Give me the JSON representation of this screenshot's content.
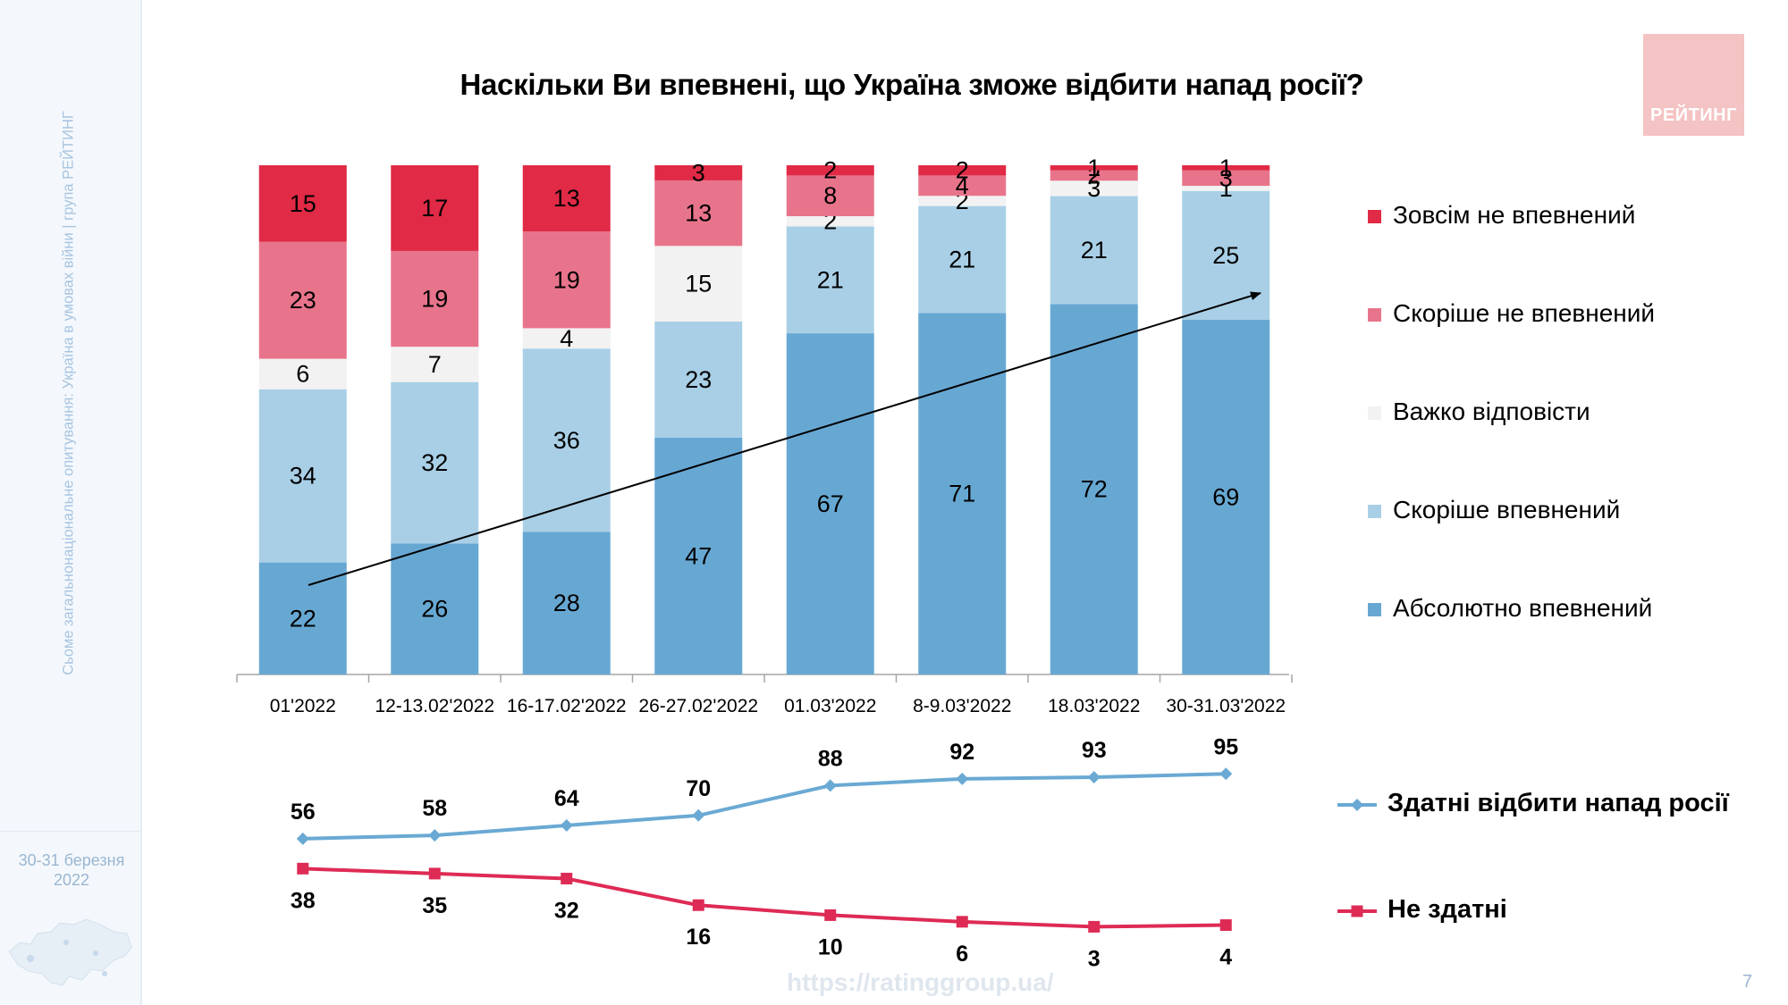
{
  "sidebar": {
    "vertical_text": "Сьоме загальнонаціональне опитування: Україна в умовах війни | група РЕЙТИНГ",
    "date_line1": "30-31 березня",
    "date_line2": "2022"
  },
  "logo": {
    "text": "РЕЙТИНГ"
  },
  "footer": {
    "url": "https://ratinggroup.ua/",
    "page_number": "7"
  },
  "colors": {
    "abs_confident": "#67a8d3",
    "rather_confident": "#a9cfe6",
    "hard_to_say": "#f2f2f2",
    "rather_not": "#e8748b",
    "not_at_all": "#e02a46",
    "line_able": "#6aa9d3",
    "line_unable": "#de2b55"
  },
  "chart_data": [
    {
      "type": "bar",
      "stacked": true,
      "title": "Наскільки Ви впевнені, що Україна зможе відбити напад росії?",
      "categories": [
        "01'2022",
        "12-13.02'2022",
        "16-17.02'2022",
        "26-27.02'2022",
        "01.03'2022",
        "8-9.03'2022",
        "18.03'2022",
        "30-31.03'2022"
      ],
      "series": [
        {
          "name": "Абсолютно впевнений",
          "color_key": "abs_confident",
          "values": [
            22,
            26,
            28,
            47,
            67,
            71,
            72,
            69
          ]
        },
        {
          "name": "Скоріше впевнений",
          "color_key": "rather_confident",
          "values": [
            34,
            32,
            36,
            23,
            21,
            21,
            21,
            25
          ]
        },
        {
          "name": "Важко відповісти",
          "color_key": "hard_to_say",
          "values": [
            6,
            7,
            4,
            15,
            2,
            2,
            3,
            1
          ]
        },
        {
          "name": "Скоріше не впевнений",
          "color_key": "rather_not",
          "values": [
            23,
            19,
            19,
            13,
            8,
            4,
            2,
            3
          ]
        },
        {
          "name": "Зовсім не впевнений",
          "color_key": "not_at_all",
          "values": [
            15,
            17,
            13,
            3,
            2,
            2,
            1,
            1
          ]
        }
      ],
      "legend_position": "right",
      "trend_arrow": true,
      "ylim": [
        0,
        100
      ]
    },
    {
      "type": "line",
      "categories": [
        "01'2022",
        "12-13.02'2022",
        "16-17.02'2022",
        "26-27.02'2022",
        "01.03'2022",
        "8-9.03'2022",
        "18.03'2022",
        "30-31.03'2022"
      ],
      "series": [
        {
          "name": "Здатні відбити напад росії",
          "color_key": "line_able",
          "marker": "diamond",
          "values": [
            56,
            58,
            64,
            70,
            88,
            92,
            93,
            95
          ]
        },
        {
          "name": "Не здатні",
          "color_key": "line_unable",
          "marker": "square",
          "values": [
            38,
            35,
            32,
            16,
            10,
            6,
            3,
            4
          ]
        }
      ],
      "legend_position": "right"
    }
  ]
}
